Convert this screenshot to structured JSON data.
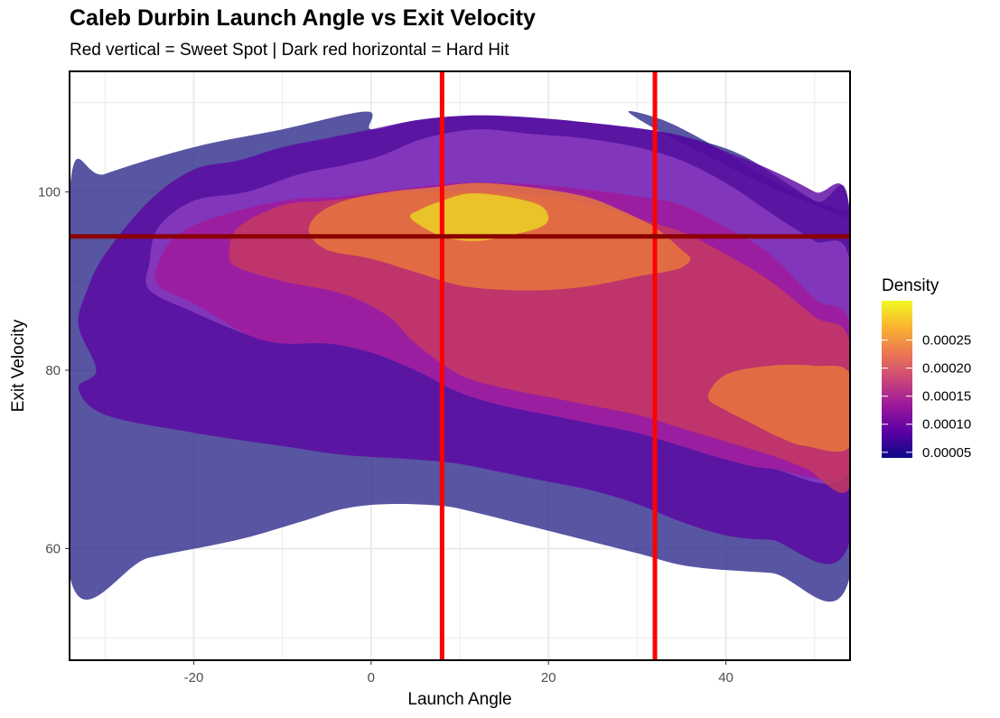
{
  "chart_data": {
    "type": "filled-density-contour",
    "title": "Caleb Durbin Launch Angle vs Exit Velocity",
    "subtitle": "Red vertical = Sweet Spot | Dark red horizontal = Hard Hit",
    "xlabel": "Launch Angle",
    "ylabel": "Exit Velocity",
    "xlim": [
      -34,
      54
    ],
    "ylim": [
      47.5,
      113.5
    ],
    "x_ticks": [
      -20,
      0,
      20,
      40
    ],
    "y_ticks": [
      60,
      80,
      100
    ],
    "grid": true,
    "reference_lines": [
      {
        "orientation": "vertical",
        "value": 8,
        "color": "#ff0000",
        "meaning": "Sweet Spot"
      },
      {
        "orientation": "vertical",
        "value": 32,
        "color": "#ff0000",
        "meaning": "Sweet Spot"
      },
      {
        "orientation": "horizontal",
        "value": 95,
        "color": "#8b0000",
        "meaning": "Hard Hit"
      }
    ],
    "legend": {
      "title": "Density",
      "position": "right",
      "range": [
        4e-05,
        0.00032
      ],
      "labels": [
        "0.00005",
        "0.00010",
        "0.00015",
        "0.00020",
        "0.00025"
      ],
      "values": [
        5e-05,
        0.0001,
        0.00015,
        0.0002,
        0.00025
      ],
      "colors": [
        "#0d0887",
        "#5b01a5",
        "#9a179b",
        "#cb4678",
        "#eb7852",
        "#fbb32f",
        "#f0f921"
      ]
    },
    "levels": [
      {
        "level": 1,
        "color": "#2e2b8c",
        "polygons": [
          [
            [
              -34,
              57
            ],
            [
              -25,
              59
            ],
            [
              -15,
              61
            ],
            [
              -8,
              63
            ],
            [
              -3,
              64.5
            ],
            [
              2,
              65
            ],
            [
              8,
              64.8
            ],
            [
              12,
              64
            ],
            [
              18,
              62.5
            ],
            [
              24,
              61
            ],
            [
              30,
              59.5
            ],
            [
              36,
              58
            ],
            [
              45,
              57.3
            ],
            [
              54,
              57
            ],
            [
              54,
              97.5
            ],
            [
              50,
              99
            ],
            [
              42,
              104
            ],
            [
              36,
              106
            ],
            [
              31,
              107
            ],
            [
              22,
              108
            ],
            [
              15,
              108.5
            ],
            [
              10,
              108.5
            ],
            [
              5,
              108
            ],
            [
              0,
              107
            ],
            [
              -0.5,
              109
            ],
            [
              -10,
              107
            ],
            [
              -20,
              105
            ],
            [
              -30,
              102
            ],
            [
              -34,
              100
            ]
          ],
          [
            [
              29,
              109
            ],
            [
              33,
              108
            ],
            [
              38,
              105.5
            ],
            [
              44,
              102
            ],
            [
              50,
              99
            ],
            [
              54,
              97.7
            ],
            [
              54,
              97
            ],
            [
              50,
              98.5
            ],
            [
              44,
              101
            ],
            [
              38,
              104
            ],
            [
              33,
              106.5
            ]
          ]
        ]
      },
      {
        "level": 2,
        "color": "#5c05a3",
        "polygons": [
          [
            [
              -33,
              78
            ],
            [
              -30,
              75
            ],
            [
              -20,
              73
            ],
            [
              -10,
              71.5
            ],
            [
              -3,
              70.5
            ],
            [
              5,
              70
            ],
            [
              10,
              69.5
            ],
            [
              15,
              68.5
            ],
            [
              20,
              67.5
            ],
            [
              25,
              66.5
            ],
            [
              30,
              65
            ],
            [
              35,
              63
            ],
            [
              40,
              61.5
            ],
            [
              45,
              61
            ],
            [
              54,
              61
            ],
            [
              54,
              97.5
            ],
            [
              50,
              100
            ],
            [
              45,
              102.5
            ],
            [
              40,
              104.5
            ],
            [
              36,
              106
            ],
            [
              31,
              107
            ],
            [
              22,
              108
            ],
            [
              15,
              108.5
            ],
            [
              10,
              108.5
            ],
            [
              5,
              108
            ],
            [
              0,
              107
            ],
            [
              -5,
              106
            ],
            [
              -10,
              105
            ],
            [
              -15,
              103.5
            ],
            [
              -20,
              102.5
            ],
            [
              -25,
              99
            ],
            [
              -30,
              93
            ],
            [
              -32,
              89
            ],
            [
              -33,
              85
            ],
            [
              -31,
              80
            ]
          ]
        ]
      },
      {
        "level": 3,
        "color": "#8c3fc0",
        "polygons": [
          [
            [
              -25,
              89
            ],
            [
              -20,
              86.5
            ],
            [
              -14,
              84
            ],
            [
              -10,
              83
            ],
            [
              -5,
              83
            ],
            [
              0,
              82
            ],
            [
              5,
              80
            ],
            [
              10,
              77.5
            ],
            [
              15,
              76
            ],
            [
              20,
              75
            ],
            [
              25,
              74
            ],
            [
              30,
              73
            ],
            [
              35,
              71.5
            ],
            [
              40,
              70
            ],
            [
              45,
              69
            ],
            [
              54,
              69
            ],
            [
              54,
              92
            ],
            [
              50,
              94.5
            ],
            [
              46,
              97
            ],
            [
              40,
              101
            ],
            [
              35,
              103.5
            ],
            [
              30,
              105
            ],
            [
              24,
              106
            ],
            [
              18,
              106.5
            ],
            [
              12,
              107
            ],
            [
              6,
              106
            ],
            [
              1,
              104
            ],
            [
              -3,
              103
            ],
            [
              -8,
              102
            ],
            [
              -14,
              100
            ],
            [
              -20,
              99
            ],
            [
              -24,
              96
            ],
            [
              -25,
              92
            ]
          ]
        ]
      },
      {
        "level": 4,
        "color": "#a3199a",
        "polygons": [
          [
            [
              -24,
              89.5
            ],
            [
              -20,
              87.5
            ],
            [
              -14,
              84
            ],
            [
              -10,
              83
            ],
            [
              -5,
              83
            ],
            [
              0,
              82
            ],
            [
              5,
              80
            ],
            [
              10,
              77.5
            ],
            [
              15,
              76
            ],
            [
              20,
              75
            ],
            [
              25,
              74
            ],
            [
              30,
              73
            ],
            [
              35,
              71.5
            ],
            [
              40,
              70
            ],
            [
              45,
              69
            ],
            [
              54,
              69
            ],
            [
              54,
              85
            ],
            [
              50,
              88
            ],
            [
              45,
              93
            ],
            [
              40,
              96
            ],
            [
              35,
              98.5
            ],
            [
              30,
              99.5
            ],
            [
              22,
              100.5
            ],
            [
              15,
              101
            ],
            [
              10,
              101
            ],
            [
              5,
              100.5
            ],
            [
              -3,
              99.5
            ],
            [
              -10,
              99
            ],
            [
              -18,
              97
            ],
            [
              -22,
              95
            ],
            [
              -24,
              92
            ]
          ]
        ]
      },
      {
        "level": 5,
        "color": "#c8395e",
        "polygons": [
          [
            [
              -16,
              93
            ],
            [
              -15,
              91.5
            ],
            [
              -10,
              90
            ],
            [
              -3,
              88.5
            ],
            [
              2,
              86
            ],
            [
              5,
              83
            ],
            [
              10,
              79.5
            ],
            [
              15,
              78
            ],
            [
              20,
              77
            ],
            [
              25,
              76
            ],
            [
              30,
              75
            ],
            [
              35,
              73.5
            ],
            [
              40,
              72
            ],
            [
              45,
              70.5
            ],
            [
              49,
              69
            ],
            [
              54,
              67
            ],
            [
              54,
              83
            ],
            [
              50,
              86
            ],
            [
              45,
              90
            ],
            [
              40,
              93
            ],
            [
              35,
              95.5
            ],
            [
              30,
              97
            ],
            [
              25,
              98.5
            ],
            [
              20,
              99.5
            ],
            [
              12,
              100
            ],
            [
              5,
              100
            ],
            [
              0,
              99.5
            ],
            [
              -5,
              99
            ],
            [
              -10,
              98.5
            ],
            [
              -15,
              96
            ]
          ]
        ]
      },
      {
        "level": 6,
        "color": "#ea7b3a",
        "polygons": [
          [
            [
              -7,
              95.5
            ],
            [
              -5,
              93.5
            ],
            [
              0,
              92.5
            ],
            [
              5,
              91
            ],
            [
              10,
              89.5
            ],
            [
              15,
              89
            ],
            [
              20,
              89
            ],
            [
              25,
              89.5
            ],
            [
              30,
              90.5
            ],
            [
              33,
              91
            ],
            [
              35,
              91.5
            ],
            [
              36,
              92.5
            ],
            [
              35,
              93.5
            ],
            [
              32,
              96
            ],
            [
              28,
              98
            ],
            [
              24,
              99.5
            ],
            [
              18,
              100.5
            ],
            [
              12,
              101
            ],
            [
              7,
              100.5
            ],
            [
              2,
              100
            ],
            [
              -3,
              99
            ],
            [
              -6,
              97.5
            ]
          ],
          [
            [
              38,
              77
            ],
            [
              40,
              75.5
            ],
            [
              43,
              74
            ],
            [
              46,
              72.5
            ],
            [
              49,
              71.5
            ],
            [
              54,
              71.5
            ],
            [
              54,
              79.5
            ],
            [
              50,
              80.5
            ],
            [
              45,
              80.5
            ],
            [
              40,
              79.5
            ]
          ]
        ]
      },
      {
        "level": 7,
        "color": "#ecd824",
        "polygons": [
          [
            [
              4.5,
              97
            ],
            [
              8,
              95
            ],
            [
              12,
              94.5
            ],
            [
              16,
              95.2
            ],
            [
              19,
              96
            ],
            [
              20,
              97
            ],
            [
              19,
              98.5
            ],
            [
              15,
              99.5
            ],
            [
              11,
              99.8
            ],
            [
              8,
              99
            ],
            [
              5.5,
              98
            ]
          ]
        ]
      }
    ]
  }
}
